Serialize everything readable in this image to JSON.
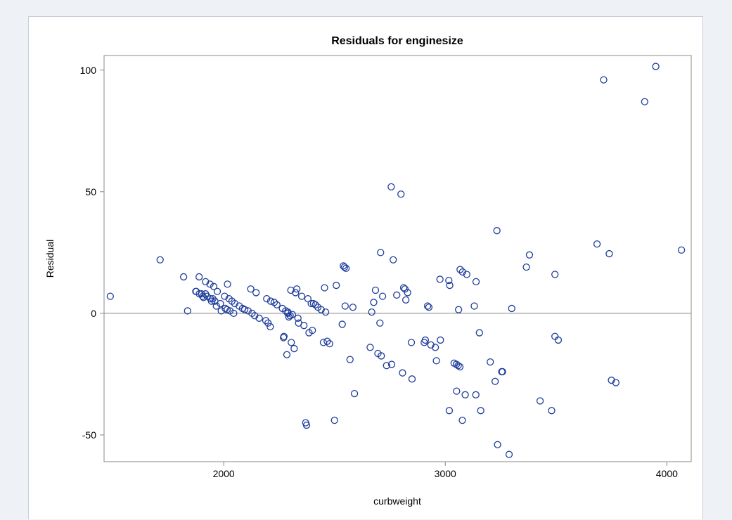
{
  "chart_data": {
    "type": "scatter",
    "title": "Residuals for enginesize",
    "xlabel": "curbweight",
    "ylabel": "Residual",
    "xlim": [
      1460,
      4110
    ],
    "ylim": [
      -61,
      106
    ],
    "xticks": [
      2000,
      3000,
      4000
    ],
    "yticks": [
      -50,
      0,
      50,
      100
    ],
    "reference_line_y": 0,
    "grid": false,
    "legend": "none",
    "marker": "open-circle",
    "marker_color": "#1f3d9c",
    "axis_color": "#888888",
    "reference_line_color": "#888888",
    "points": [
      [
        1488,
        7
      ],
      [
        1713,
        22
      ],
      [
        1819,
        15
      ],
      [
        1837,
        1
      ],
      [
        1874,
        9
      ],
      [
        1876,
        9
      ],
      [
        1889,
        15
      ],
      [
        1890,
        8
      ],
      [
        1900,
        8
      ],
      [
        1905,
        7
      ],
      [
        1909,
        6.5
      ],
      [
        1918,
        13
      ],
      [
        1918,
        8
      ],
      [
        1925,
        7
      ],
      [
        1938,
        12
      ],
      [
        1940,
        6
      ],
      [
        1945,
        5
      ],
      [
        1951,
        6
      ],
      [
        1955,
        11
      ],
      [
        1960,
        5
      ],
      [
        1967,
        3
      ],
      [
        1971,
        9
      ],
      [
        1985,
        4
      ],
      [
        1989,
        1
      ],
      [
        2004,
        7
      ],
      [
        2007,
        2
      ],
      [
        2015,
        1.5
      ],
      [
        2017,
        12
      ],
      [
        2024,
        6
      ],
      [
        2028,
        1
      ],
      [
        2037,
        5
      ],
      [
        2045,
        0
      ],
      [
        2050,
        4
      ],
      [
        2070,
        3
      ],
      [
        2085,
        2
      ],
      [
        2095,
        1.5
      ],
      [
        2110,
        1
      ],
      [
        2122,
        10
      ],
      [
        2128,
        0
      ],
      [
        2140,
        -1
      ],
      [
        2146,
        8.5
      ],
      [
        2160,
        -2
      ],
      [
        2190,
        -3
      ],
      [
        2194,
        6
      ],
      [
        2200,
        -4
      ],
      [
        2210,
        -5.5
      ],
      [
        2212,
        5
      ],
      [
        2228,
        4.5
      ],
      [
        2240,
        3.5
      ],
      [
        2265,
        2
      ],
      [
        2270,
        -10
      ],
      [
        2272,
        -9.5
      ],
      [
        2280,
        1
      ],
      [
        2285,
        -17
      ],
      [
        2289,
        0
      ],
      [
        2290,
        0.5
      ],
      [
        2294,
        -1.5
      ],
      [
        2300,
        -1
      ],
      [
        2303,
        9.5
      ],
      [
        2305,
        -12
      ],
      [
        2310,
        -0.5
      ],
      [
        2318,
        -14.5
      ],
      [
        2324,
        8.5
      ],
      [
        2330,
        10
      ],
      [
        2335,
        -2
      ],
      [
        2338,
        -4
      ],
      [
        2352,
        7
      ],
      [
        2362,
        -5
      ],
      [
        2370,
        -45
      ],
      [
        2374,
        -46
      ],
      [
        2380,
        6
      ],
      [
        2385,
        -8
      ],
      [
        2395,
        4
      ],
      [
        2400,
        -7
      ],
      [
        2405,
        4
      ],
      [
        2414,
        3.5
      ],
      [
        2425,
        2.5
      ],
      [
        2440,
        1.5
      ],
      [
        2450,
        -12
      ],
      [
        2455,
        10.5
      ],
      [
        2460,
        0.5
      ],
      [
        2467,
        -11.5
      ],
      [
        2478,
        -12.5
      ],
      [
        2500,
        -44
      ],
      [
        2508,
        11.5
      ],
      [
        2535,
        -4.5
      ],
      [
        2540,
        19.5
      ],
      [
        2545,
        19
      ],
      [
        2548,
        3
      ],
      [
        2552,
        18.5
      ],
      [
        2570,
        -19
      ],
      [
        2583,
        2.5
      ],
      [
        2590,
        -33
      ],
      [
        2661,
        -14
      ],
      [
        2668,
        0.5
      ],
      [
        2677,
        4.5
      ],
      [
        2685,
        9.5
      ],
      [
        2696,
        -16.5
      ],
      [
        2705,
        -4
      ],
      [
        2708,
        25
      ],
      [
        2711,
        -17.5
      ],
      [
        2717,
        7
      ],
      [
        2735,
        -21.5
      ],
      [
        2756,
        52
      ],
      [
        2758,
        -21
      ],
      [
        2765,
        22
      ],
      [
        2781,
        7.5
      ],
      [
        2800,
        49
      ],
      [
        2807,
        -24.5
      ],
      [
        2812,
        10.5
      ],
      [
        2818,
        10
      ],
      [
        2822,
        5.5
      ],
      [
        2830,
        8.5
      ],
      [
        2847,
        -12
      ],
      [
        2850,
        -27
      ],
      [
        2905,
        -12
      ],
      [
        2910,
        -11
      ],
      [
        2920,
        3
      ],
      [
        2926,
        2.5
      ],
      [
        2935,
        -13
      ],
      [
        2955,
        -14
      ],
      [
        2960,
        -19.5
      ],
      [
        2976,
        14
      ],
      [
        2978,
        -11
      ],
      [
        3016,
        13.5
      ],
      [
        3018,
        -40
      ],
      [
        3020,
        11.5
      ],
      [
        3040,
        -20.5
      ],
      [
        3050,
        -21
      ],
      [
        3051,
        -32
      ],
      [
        3058,
        -21.5
      ],
      [
        3060,
        1.5
      ],
      [
        3066,
        -22
      ],
      [
        3067,
        18
      ],
      [
        3077,
        -44
      ],
      [
        3078,
        17
      ],
      [
        3090,
        -33.5
      ],
      [
        3097,
        16
      ],
      [
        3131,
        3
      ],
      [
        3138,
        -33.5
      ],
      [
        3139,
        13
      ],
      [
        3154,
        -8
      ],
      [
        3160,
        -40
      ],
      [
        3203,
        -20
      ],
      [
        3225,
        -28
      ],
      [
        3233,
        34
      ],
      [
        3236,
        -54
      ],
      [
        3255,
        -24
      ],
      [
        3258,
        -24
      ],
      [
        3288,
        -58
      ],
      [
        3300,
        2
      ],
      [
        3428,
        -36
      ],
      [
        3366,
        19
      ],
      [
        3380,
        24
      ],
      [
        3480,
        -40
      ],
      [
        3495,
        -9.5
      ],
      [
        3495,
        16
      ],
      [
        3510,
        -11
      ],
      [
        3685,
        28.5
      ],
      [
        3715,
        96
      ],
      [
        3740,
        24.5
      ],
      [
        3750,
        -27.5
      ],
      [
        3770,
        -28.5
      ],
      [
        3900,
        87
      ],
      [
        3950,
        101.5
      ],
      [
        4066,
        26
      ]
    ]
  }
}
